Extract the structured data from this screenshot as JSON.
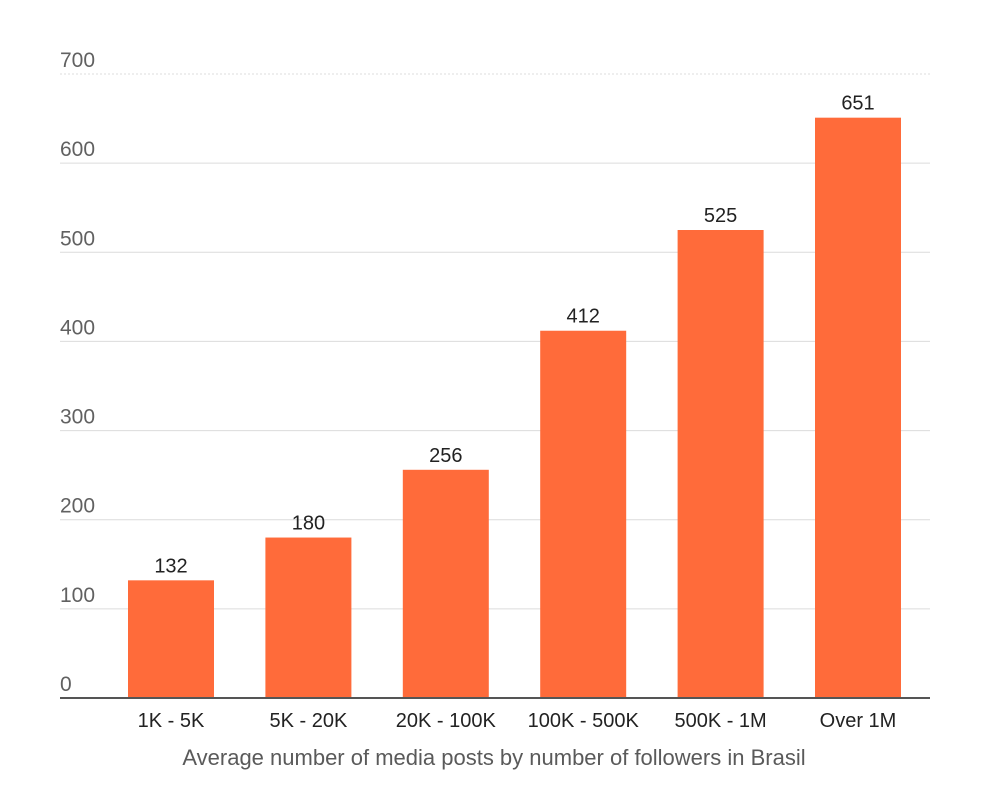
{
  "chart_data": {
    "type": "bar",
    "title": "",
    "xlabel": "Average number of media posts by number of followers in Brasil",
    "ylabel": "",
    "categories": [
      "1K - 5K",
      "5K - 20K",
      "20K - 100K",
      "100K - 500K",
      "500K - 1M",
      "Over 1M"
    ],
    "values": [
      132,
      180,
      256,
      412,
      525,
      651
    ],
    "data_labels": [
      "132",
      "180",
      "256",
      "412",
      "525",
      "651"
    ],
    "ylim": [
      0,
      700
    ],
    "yticks": [
      0,
      100,
      200,
      300,
      400,
      500,
      600,
      700
    ],
    "ytick_labels": [
      "0",
      "100",
      "200",
      "300",
      "400",
      "500",
      "600",
      "700"
    ],
    "grid": true,
    "legend": "none",
    "colors": {
      "bar": "#FF6B3A",
      "grid": "#dcdcdc",
      "baseline": "#555555"
    }
  }
}
